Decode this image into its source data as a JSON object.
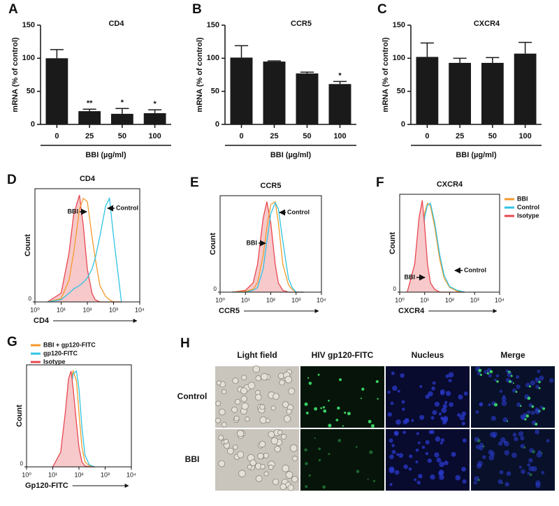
{
  "chart_data": [
    {
      "type": "bar",
      "panel": "A",
      "title": "CD4",
      "ylabel": "mRNA (% of control)",
      "xlabel": "BBI (µg/ml)",
      "categories": [
        "0",
        "25",
        "50",
        "100"
      ],
      "values": [
        100,
        20,
        16,
        17
      ],
      "errors": [
        13,
        3,
        8,
        5
      ],
      "value_annotations": [
        null,
        "**",
        "*",
        "*"
      ],
      "color": "#1a1a1a",
      "ylim": [
        0,
        150
      ],
      "yticks": [
        0,
        50,
        100,
        150
      ],
      "grid": false
    },
    {
      "type": "bar",
      "panel": "B",
      "title": "CCR5",
      "ylabel": "mRNA (% of control)",
      "xlabel": "BBI (µg/ml)",
      "categories": [
        "0",
        "25",
        "50",
        "100"
      ],
      "values": [
        101,
        95,
        77,
        61
      ],
      "errors": [
        18,
        1,
        2,
        4
      ],
      "value_annotations": [
        null,
        null,
        null,
        "*"
      ],
      "color": "#1a1a1a",
      "ylim": [
        0,
        150
      ],
      "yticks": [
        0,
        50,
        100,
        150
      ],
      "grid": false
    },
    {
      "type": "bar",
      "panel": "C",
      "title": "CXCR4",
      "ylabel": "mRNA (% of control)",
      "xlabel": "BBI (µg/ml)",
      "categories": [
        "0",
        "25",
        "50",
        "100"
      ],
      "values": [
        102,
        93,
        93,
        107
      ],
      "errors": [
        21,
        7,
        8,
        17
      ],
      "value_annotations": [
        null,
        null,
        null,
        null
      ],
      "color": "#1a1a1a",
      "ylim": [
        0,
        150
      ],
      "yticks": [
        0,
        50,
        100,
        150
      ],
      "grid": false
    },
    {
      "type": "line",
      "panel": "D",
      "title": "CD4",
      "ylabel": "Count",
      "xlabel": "CD4",
      "xscale": "log",
      "legend": false,
      "annotations": [
        "BBI",
        "Control"
      ],
      "x": [
        3,
        10,
        20,
        30,
        50,
        70,
        100,
        150,
        200,
        300,
        500,
        700,
        1000,
        2000
      ],
      "series": [
        {
          "color": "#e8474f",
          "fill": "#f7c9cb",
          "values": [
            0,
            8,
            45,
            80,
            98,
            70,
            30,
            8,
            2,
            0,
            0,
            0,
            0,
            0
          ]
        },
        {
          "color": "#f39a2c",
          "values": [
            0,
            3,
            20,
            45,
            85,
            95,
            92,
            60,
            40,
            15,
            5,
            2,
            0,
            0
          ]
        },
        {
          "color": "#2fc3e3",
          "values": [
            0,
            2,
            8,
            12,
            15,
            18,
            22,
            30,
            40,
            60,
            88,
            95,
            60,
            0
          ]
        }
      ],
      "xlim": [
        1,
        10000
      ],
      "xticks": [
        {
          "value": 1,
          "label": "10⁰"
        },
        {
          "value": 10,
          "label": "10¹"
        },
        {
          "value": 100,
          "label": "10²"
        },
        {
          "value": 1000,
          "label": "10³"
        },
        {
          "value": 10000,
          "label": "10⁴"
        }
      ],
      "ylim": [
        0,
        100
      ],
      "yticks": [
        0
      ],
      "grid": false
    },
    {
      "type": "line",
      "panel": "E",
      "title": "CCR5",
      "ylabel": "Count",
      "xlabel": "CCR5",
      "xscale": "log",
      "legend": false,
      "annotations": [
        "BBI",
        "Control"
      ],
      "x": [
        3,
        10,
        20,
        30,
        50,
        70,
        100,
        150,
        200,
        300,
        500,
        700,
        1000,
        2000
      ],
      "series": [
        {
          "color": "#e8474f",
          "fill": "#f7c9cb",
          "values": [
            0,
            2,
            10,
            30,
            80,
            98,
            75,
            30,
            10,
            2,
            0,
            0,
            0,
            0
          ]
        },
        {
          "color": "#f39a2c",
          "values": [
            0,
            1,
            3,
            10,
            40,
            70,
            95,
            98,
            75,
            30,
            8,
            3,
            0,
            0
          ]
        },
        {
          "color": "#2fc3e3",
          "values": [
            0,
            0,
            2,
            5,
            25,
            55,
            85,
            97,
            90,
            55,
            15,
            5,
            0,
            0
          ]
        }
      ],
      "xlim": [
        1,
        10000
      ],
      "xticks": [
        {
          "value": 1,
          "label": "10⁰"
        },
        {
          "value": 10,
          "label": "10¹"
        },
        {
          "value": 100,
          "label": "10²"
        },
        {
          "value": 1000,
          "label": "10³"
        },
        {
          "value": 10000,
          "label": "10⁴"
        }
      ],
      "ylim": [
        0,
        100
      ],
      "yticks": [
        0
      ],
      "grid": false
    },
    {
      "type": "line",
      "panel": "F",
      "title": "CXCR4",
      "ylabel": "Count",
      "xlabel": "CXCR4",
      "xscale": "log",
      "legend": true,
      "annotations": [
        "BBI",
        "Control"
      ],
      "x": [
        2,
        4,
        6,
        8,
        10,
        13,
        17,
        25,
        40,
        60,
        100,
        200,
        400
      ],
      "series": [
        {
          "name": "BBI",
          "color": "#f39a2c",
          "values": [
            0,
            5,
            25,
            60,
            85,
            95,
            92,
            70,
            35,
            15,
            5,
            1,
            0
          ]
        },
        {
          "name": "Control",
          "color": "#2fc3e3",
          "values": [
            0,
            4,
            20,
            55,
            80,
            93,
            95,
            75,
            40,
            18,
            6,
            2,
            0
          ]
        },
        {
          "name": "Isotype",
          "color": "#e8474f",
          "fill": "#f7c9cb",
          "values": [
            0,
            30,
            80,
            98,
            70,
            30,
            10,
            3,
            0,
            0,
            0,
            0,
            0
          ]
        }
      ],
      "xlim": [
        1,
        10000
      ],
      "xticks": [
        {
          "value": 1,
          "label": "10⁰"
        },
        {
          "value": 10,
          "label": "10¹"
        },
        {
          "value": 100,
          "label": "10²"
        },
        {
          "value": 1000,
          "label": "10³"
        },
        {
          "value": 10000,
          "label": "10⁴"
        }
      ],
      "ylim": [
        0,
        100
      ],
      "yticks": [
        0
      ],
      "grid": false
    },
    {
      "type": "line",
      "panel": "G",
      "ylabel": "Count",
      "xlabel": "Gp120-FITC",
      "xscale": "log",
      "legend": true,
      "annotations": [],
      "x": [
        10,
        20,
        30,
        40,
        50,
        60,
        80,
        100,
        130,
        170,
        250,
        400
      ],
      "series": [
        {
          "name": "BBI + gp120-FITC",
          "color": "#f39a2c",
          "values": [
            0,
            8,
            35,
            70,
            90,
            98,
            88,
            55,
            20,
            5,
            1,
            0
          ]
        },
        {
          "name": "gp120-FITC",
          "color": "#2fc3e3",
          "values": [
            0,
            5,
            25,
            55,
            80,
            95,
            98,
            80,
            40,
            12,
            2,
            0
          ]
        },
        {
          "name": "Isotype",
          "color": "#e8474f",
          "fill": "#f7c9cb",
          "values": [
            0,
            15,
            55,
            90,
            98,
            80,
            45,
            20,
            5,
            1,
            0,
            0
          ]
        }
      ],
      "xlim": [
        1,
        10000
      ],
      "xticks": [
        {
          "value": 1,
          "label": "10⁰"
        },
        {
          "value": 10,
          "label": "10¹"
        },
        {
          "value": 100,
          "label": "10²"
        },
        {
          "value": 1000,
          "label": "10³"
        },
        {
          "value": 10000,
          "label": "10⁴"
        }
      ],
      "ylim": [
        0,
        100
      ],
      "yticks": [
        0
      ],
      "grid": false
    }
  ],
  "microscopy": {
    "panel": "H",
    "columns": [
      "Light field",
      "HIV gp120-FITC",
      "Nucleus",
      "Merge"
    ],
    "rows": [
      "Control",
      "BBI"
    ]
  }
}
